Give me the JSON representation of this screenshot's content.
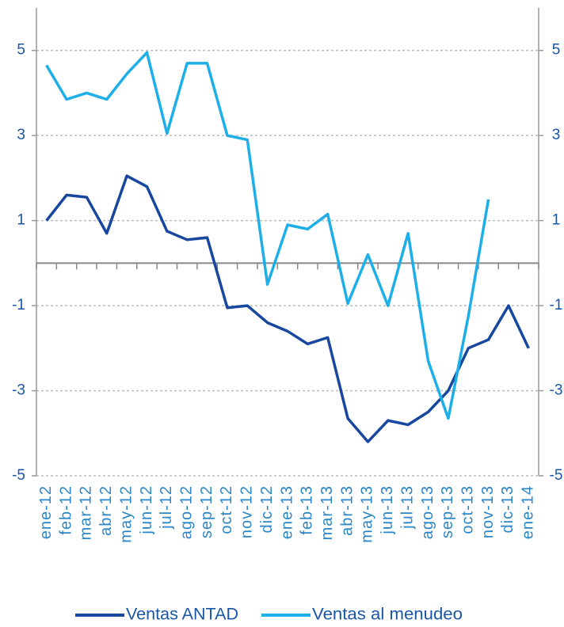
{
  "chart_data": {
    "type": "line",
    "categories": [
      "ene-12",
      "feb-12",
      "mar-12",
      "abr-12",
      "may-12",
      "jun-12",
      "jul-12",
      "ago-12",
      "sep-12",
      "oct-12",
      "nov-12",
      "dic-12",
      "ene-13",
      "feb-13",
      "mar-13",
      "abr-13",
      "may-13",
      "jun-13",
      "jul-13",
      "ago-13",
      "sep-13",
      "oct-13",
      "nov-13",
      "dic-13",
      "ene-14"
    ],
    "series": [
      {
        "name": "Ventas ANTAD",
        "color": "#17479e",
        "values": [
          1.0,
          1.6,
          1.55,
          0.7,
          2.05,
          1.8,
          0.75,
          0.55,
          0.6,
          -1.05,
          -1.0,
          -1.4,
          -1.6,
          -1.9,
          -1.75,
          -3.65,
          -4.2,
          -3.7,
          -3.8,
          -3.5,
          -3.0,
          -2.0,
          -1.8,
          -1.0,
          -2.0
        ]
      },
      {
        "name": "Ventas al menudeo",
        "color": "#1eaee8",
        "axis": "y2",
        "values": [
          4.65,
          3.85,
          4.0,
          3.85,
          4.45,
          4.95,
          3.05,
          4.7,
          4.7,
          3.0,
          2.9,
          -0.5,
          0.9,
          0.8,
          1.15,
          -0.95,
          0.2,
          -1.0,
          0.7,
          -2.3,
          -3.65,
          -1.25,
          1.5,
          null,
          null
        ]
      }
    ],
    "ylim": [
      -5,
      6
    ],
    "yticks": [
      5,
      3,
      1,
      -1,
      -3,
      -5
    ],
    "y2lim": [
      -5,
      6
    ],
    "y2ticks": [
      5,
      3,
      1,
      -1,
      -3,
      -5
    ],
    "grid": true
  }
}
